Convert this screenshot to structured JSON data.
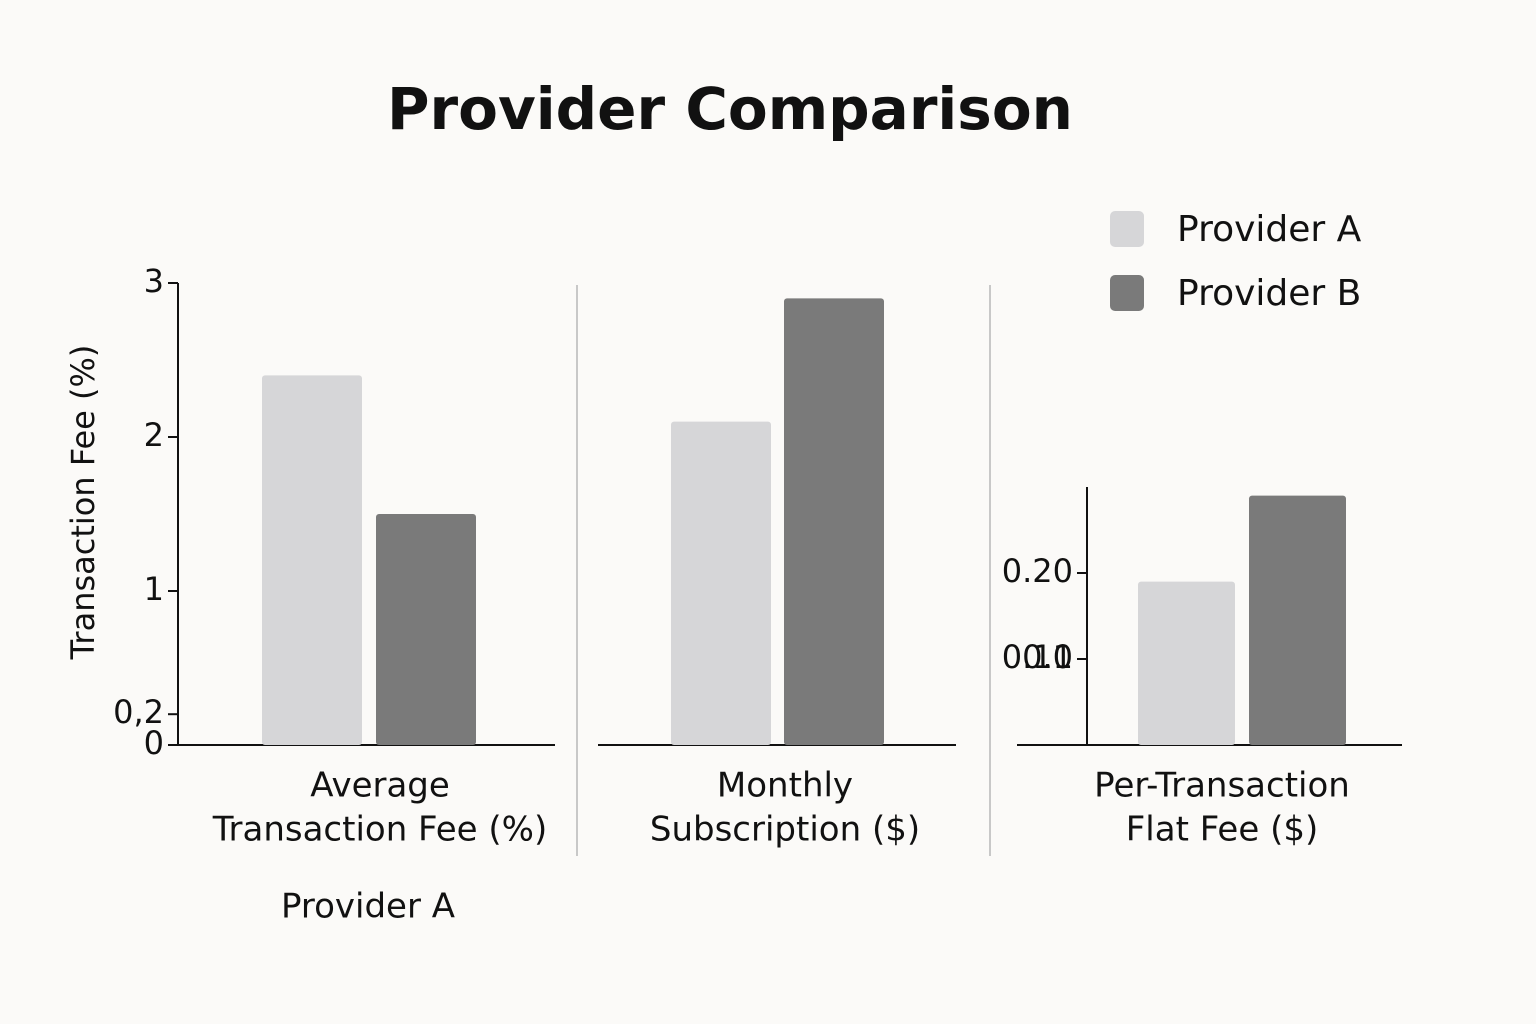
{
  "title": "Provider Comparison",
  "caption": "Provider A",
  "ylabel": "Transaction Fee (%)",
  "chart_data": [
    {
      "type": "bar",
      "xlabel": [
        "Average",
        "Transaction Fee (%)"
      ],
      "series": [
        {
          "name": "Provider A",
          "color": "#d6d6d8",
          "values": [
            2.4
          ]
        },
        {
          "name": "Provider B",
          "color": "#7a7a7a",
          "values": [
            1.5
          ]
        }
      ],
      "ylim": [
        0,
        3
      ],
      "yticks": [
        0,
        {
          "value": 0.2,
          "label": "0,2"
        },
        1,
        2,
        3
      ]
    },
    {
      "type": "bar",
      "xlabel": [
        "Monthly",
        "Subscription ($)"
      ],
      "series": [
        {
          "name": "Provider A",
          "color": "#d6d6d8",
          "values": [
            2.1
          ]
        },
        {
          "name": "Provider B",
          "color": "#7a7a7a",
          "values": [
            2.9
          ]
        }
      ],
      "ylim": [
        0,
        3
      ]
    },
    {
      "type": "bar",
      "xlabel": [
        "Per-Transaction",
        "Flat Fee ($)"
      ],
      "series": [
        {
          "name": "Provider A",
          "color": "#d6d6d8",
          "values": [
            0.19
          ]
        },
        {
          "name": "Provider B",
          "color": "#7a7a7a",
          "values": [
            0.29
          ]
        }
      ],
      "ylim": [
        0,
        0.3
      ],
      "yticks": [
        0.1,
        {
          "value": 0.1,
          "label": "0.10"
        },
        {
          "value": 0.2,
          "label": "0.20"
        }
      ]
    }
  ]
}
